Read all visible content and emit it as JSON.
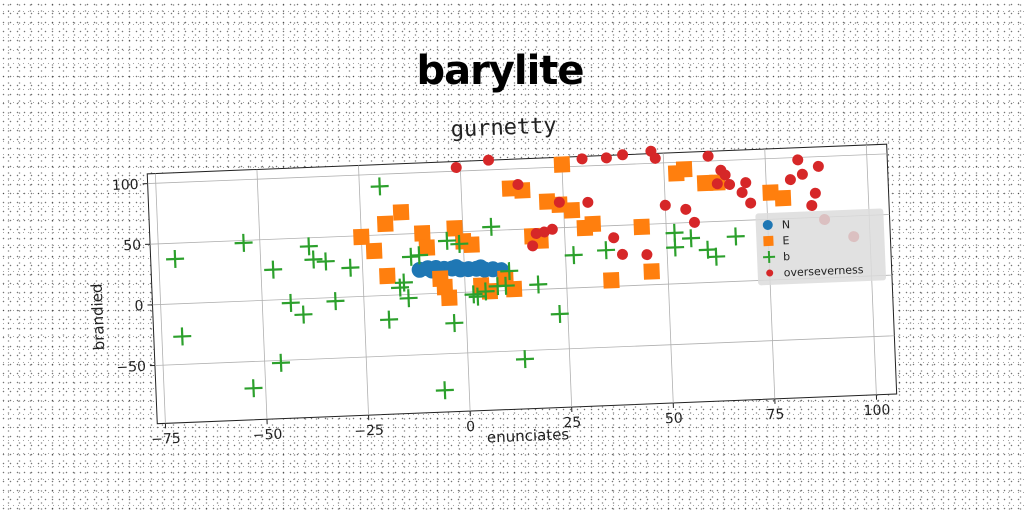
{
  "chart_data": {
    "type": "scatter",
    "suptitle": "barylite",
    "title": "gurnetty",
    "xlabel": "enunciates",
    "ylabel": "brandied",
    "xlim": [
      -77,
      105
    ],
    "ylim": [
      -98,
      108
    ],
    "xticks": [
      -75,
      -50,
      -25,
      0,
      25,
      50,
      75,
      100
    ],
    "yticks": [
      -50,
      0,
      50,
      100
    ],
    "grid": true,
    "legend_position": "right",
    "colors": {
      "N": "#1f77b4",
      "E": "#ff7f0e",
      "b": "#2ca02c",
      "overseverness": "#d62728"
    },
    "series": [
      {
        "name": "N",
        "marker": "circle",
        "points": [
          [
            -11,
            20
          ],
          [
            -9,
            21
          ],
          [
            -7,
            21
          ],
          [
            -5,
            20
          ],
          [
            -3,
            20
          ],
          [
            -1,
            19
          ],
          [
            1,
            19
          ],
          [
            3,
            19
          ],
          [
            5,
            18
          ],
          [
            7,
            18
          ],
          [
            9,
            17
          ],
          [
            -8,
            19
          ],
          [
            -2,
            21
          ],
          [
            4,
            20
          ]
        ]
      },
      {
        "name": "E",
        "marker": "square",
        "points": [
          [
            -25,
            49
          ],
          [
            -22,
            37
          ],
          [
            -19,
            59
          ],
          [
            -15,
            68
          ],
          [
            -10,
            50
          ],
          [
            -9,
            38
          ],
          [
            -6,
            12
          ],
          [
            -5,
            5
          ],
          [
            -4,
            -4
          ],
          [
            -2,
            53
          ],
          [
            0,
            42
          ],
          [
            2,
            39
          ],
          [
            4,
            5
          ],
          [
            6,
            0
          ],
          [
            10,
            10
          ],
          [
            12,
            84
          ],
          [
            15,
            82
          ],
          [
            17,
            44
          ],
          [
            19,
            40
          ],
          [
            21,
            72
          ],
          [
            25,
            102
          ],
          [
            24,
            69
          ],
          [
            27,
            64
          ],
          [
            30,
            49
          ],
          [
            32,
            52
          ],
          [
            36,
            5
          ],
          [
            44,
            48
          ],
          [
            46,
            11
          ],
          [
            53,
            91
          ],
          [
            55,
            94
          ],
          [
            60,
            82
          ],
          [
            63,
            82
          ],
          [
            76,
            72
          ],
          [
            79,
            67
          ],
          [
            -19,
            16
          ],
          [
            12,
            1
          ]
        ]
      },
      {
        "name": "b",
        "marker": "plus",
        "points": [
          [
            -71,
            37
          ],
          [
            -70,
            -27
          ],
          [
            -54,
            48
          ],
          [
            -53,
            -72
          ],
          [
            -47,
            25
          ],
          [
            -46,
            -52
          ],
          [
            -43,
            -3
          ],
          [
            -40,
            -13
          ],
          [
            -38,
            43
          ],
          [
            -37,
            32
          ],
          [
            -34,
            30
          ],
          [
            -32,
            -3
          ],
          [
            -28,
            24
          ],
          [
            -20,
            90
          ],
          [
            -19,
            -20
          ],
          [
            -16,
            6
          ],
          [
            -15,
            10
          ],
          [
            -14,
            -3
          ],
          [
            -13,
            31
          ],
          [
            -11,
            32
          ],
          [
            -6,
            -80
          ],
          [
            -4,
            43
          ],
          [
            -3,
            -25
          ],
          [
            -1,
            40
          ],
          [
            2,
            -2
          ],
          [
            3,
            -4
          ],
          [
            5,
            0
          ],
          [
            7,
            53
          ],
          [
            8,
            4
          ],
          [
            10,
            4
          ],
          [
            11,
            16
          ],
          [
            14,
            -57
          ],
          [
            18,
            4
          ],
          [
            23,
            -21
          ],
          [
            27,
            27
          ],
          [
            35,
            30
          ],
          [
            52,
            42
          ],
          [
            52,
            30
          ],
          [
            56,
            37
          ],
          [
            60,
            27
          ],
          [
            62,
            21
          ],
          [
            67,
            37
          ]
        ]
      },
      {
        "name": "overseverness",
        "marker": "dot",
        "points": [
          [
            -1,
            103
          ],
          [
            7,
            108
          ],
          [
            14,
            87
          ],
          [
            17,
            36
          ],
          [
            18,
            46
          ],
          [
            20,
            47
          ],
          [
            22,
            49
          ],
          [
            24,
            71
          ],
          [
            30,
            106
          ],
          [
            31,
            70
          ],
          [
            36,
            106
          ],
          [
            37,
            40
          ],
          [
            39,
            26
          ],
          [
            40,
            108
          ],
          [
            45,
            25
          ],
          [
            47,
            110
          ],
          [
            48,
            104
          ],
          [
            50,
            65
          ],
          [
            55,
            61
          ],
          [
            57,
            50
          ],
          [
            61,
            104
          ],
          [
            63,
            81
          ],
          [
            64,
            92
          ],
          [
            65,
            88
          ],
          [
            66,
            80
          ],
          [
            69,
            73
          ],
          [
            70,
            81
          ],
          [
            71,
            64
          ],
          [
            81,
            82
          ],
          [
            83,
            98
          ],
          [
            84,
            86
          ],
          [
            86,
            60
          ],
          [
            87,
            70
          ],
          [
            88,
            92
          ],
          [
            89,
            48
          ],
          [
            96,
            33
          ]
        ]
      }
    ]
  }
}
